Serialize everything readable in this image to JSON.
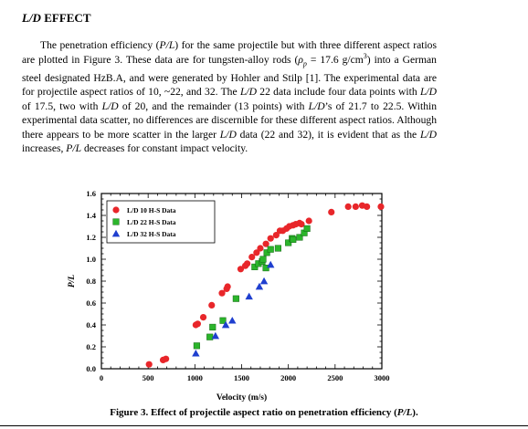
{
  "section": {
    "heading_italic": "L/D",
    "heading_rest": " EFFECT"
  },
  "paragraph": [
    {
      "t": "The penetration efficiency ("
    },
    {
      "i": "P/L"
    },
    {
      "t": ") for the same projectile but with three different aspect ratios are plotted in Figure 3.  These data are for tungsten-alloy rods ("
    },
    {
      "i": "ρ"
    },
    {
      "sub": "p"
    },
    {
      "t": " = 17.6 g/cm"
    },
    {
      "sup": "3"
    },
    {
      "t": ") into a German steel designated HzB.A, and were generated by Hohler and Stilp [1].  The experimental data are for projectile aspect ratios of 10, ~22, and 32.  The "
    },
    {
      "i": "L/D"
    },
    {
      "t": " 22 data include four data points with "
    },
    {
      "i": "L/D"
    },
    {
      "t": " of 17.5, two with "
    },
    {
      "i": "L/D"
    },
    {
      "t": " of 20, and the remainder (13 points) with "
    },
    {
      "i": "L/D"
    },
    {
      "t": "’s of 21.7 to 22.5.  Within experimental data scatter, no differences are discernible for these different aspect ratios.  Although there appears to be more scatter in the larger "
    },
    {
      "i": "L/D"
    },
    {
      "t": " data (22 and 32), it is evident that as the "
    },
    {
      "i": "L/D"
    },
    {
      "t": " increases, "
    },
    {
      "i": "P/L"
    },
    {
      "t": " decreases for constant impact velocity."
    }
  ],
  "caption": {
    "prefix": "Figure 3.  Effect of projectile aspect ratio on penetration efficiency (",
    "italic": "P/L",
    "suffix": ")."
  },
  "chart_data": {
    "type": "scatter",
    "xlabel": "Velocity (m/s)",
    "ylabel": "P/L",
    "xlim": [
      0,
      3000
    ],
    "ylim": [
      0,
      1.6
    ],
    "xticks": [
      "0",
      "500",
      "1000",
      "1500",
      "2000",
      "2500",
      "3000"
    ],
    "yticks": [
      "0.0",
      "0.2",
      "0.4",
      "0.6",
      "0.8",
      "1.0",
      "1.2",
      "1.4",
      "1.6"
    ],
    "legend_position": "top-left",
    "series": [
      {
        "name": "L/D 10  H-S Data",
        "marker": "circle",
        "color": "#e8262a",
        "points": [
          [
            510,
            0.04
          ],
          [
            660,
            0.08
          ],
          [
            690,
            0.09
          ],
          [
            1010,
            0.4
          ],
          [
            1030,
            0.41
          ],
          [
            1090,
            0.47
          ],
          [
            1180,
            0.58
          ],
          [
            1290,
            0.69
          ],
          [
            1340,
            0.73
          ],
          [
            1350,
            0.75
          ],
          [
            1490,
            0.91
          ],
          [
            1540,
            0.94
          ],
          [
            1560,
            0.96
          ],
          [
            1610,
            1.02
          ],
          [
            1660,
            1.06
          ],
          [
            1700,
            1.1
          ],
          [
            1760,
            1.14
          ],
          [
            1810,
            1.19
          ],
          [
            1870,
            1.22
          ],
          [
            1910,
            1.26
          ],
          [
            1940,
            1.26
          ],
          [
            1980,
            1.28
          ],
          [
            2010,
            1.3
          ],
          [
            2050,
            1.31
          ],
          [
            2080,
            1.32
          ],
          [
            2120,
            1.33
          ],
          [
            2140,
            1.32
          ],
          [
            2220,
            1.35
          ],
          [
            2460,
            1.43
          ],
          [
            2640,
            1.48
          ],
          [
            2720,
            1.48
          ],
          [
            2790,
            1.49
          ],
          [
            2840,
            1.48
          ],
          [
            2990,
            1.48
          ]
        ]
      },
      {
        "name": "L/D 22  H-S Data",
        "marker": "square",
        "color": "#2bb52b",
        "points": [
          [
            1020,
            0.21
          ],
          [
            1160,
            0.29
          ],
          [
            1190,
            0.38
          ],
          [
            1300,
            0.44
          ],
          [
            1440,
            0.64
          ],
          [
            1640,
            0.93
          ],
          [
            1680,
            0.96
          ],
          [
            1720,
            0.98
          ],
          [
            1730,
            1.0
          ],
          [
            1770,
            1.06
          ],
          [
            1810,
            1.09
          ],
          [
            1890,
            1.1
          ],
          [
            2000,
            1.15
          ],
          [
            2040,
            1.19
          ],
          [
            2050,
            1.18
          ],
          [
            2120,
            1.2
          ],
          [
            2170,
            1.24
          ],
          [
            2200,
            1.28
          ],
          [
            1760,
            0.92
          ]
        ]
      },
      {
        "name": "L/D 32  H-S Data",
        "marker": "triangle",
        "color": "#1f3fcf",
        "points": [
          [
            1010,
            0.14
          ],
          [
            1220,
            0.3
          ],
          [
            1330,
            0.4
          ],
          [
            1400,
            0.44
          ],
          [
            1580,
            0.66
          ],
          [
            1690,
            0.75
          ],
          [
            1740,
            0.8
          ],
          [
            1810,
            0.95
          ]
        ]
      }
    ]
  }
}
